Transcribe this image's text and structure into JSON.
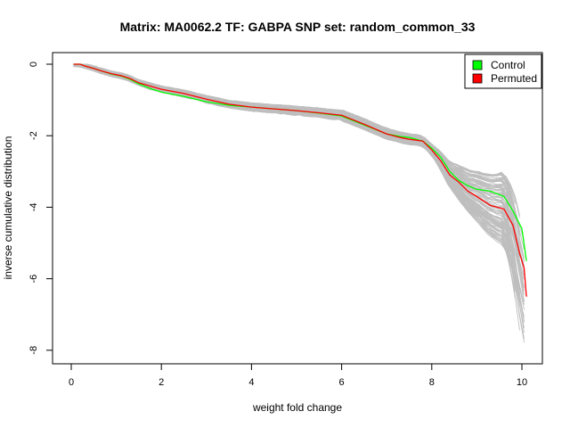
{
  "chart_data": {
    "type": "line",
    "title": "Matrix: MA0062.2 TF: GABPA SNP set: random_common_33",
    "xlabel": "weight fold change",
    "ylabel": "inverse cumulative distribution",
    "xlim": [
      0,
      10.2
    ],
    "ylim": [
      -8,
      0
    ],
    "xticks": [
      0,
      2,
      4,
      6,
      8,
      10
    ],
    "yticks": [
      0,
      -2,
      -4,
      -6,
      -8
    ],
    "grid": false,
    "legend": {
      "position": "top-right",
      "entries": [
        {
          "label": "Control",
          "color": "#00ff00"
        },
        {
          "label": "Permuted",
          "color": "#ff0000"
        }
      ]
    },
    "colors": {
      "background_lines": "#bebebe",
      "control": "#00ff00",
      "permuted": "#ff0000"
    },
    "background_series_count": 100,
    "series": [
      {
        "name": "Control",
        "color": "#00ff00",
        "x": [
          0.05,
          0.2,
          0.3,
          0.5,
          0.7,
          0.9,
          1.1,
          1.3,
          1.5,
          1.8,
          2.0,
          2.5,
          3.0,
          3.5,
          4.0,
          4.5,
          5.0,
          5.5,
          6.0,
          6.5,
          7.0,
          7.3,
          7.5,
          7.8,
          8.0,
          8.2,
          8.4,
          8.6,
          8.8,
          9.0,
          9.3,
          9.6,
          9.8,
          10.0,
          10.1
        ],
        "values": [
          0,
          0,
          -0.05,
          -0.12,
          -0.2,
          -0.28,
          -0.33,
          -0.42,
          -0.55,
          -0.7,
          -0.78,
          -0.9,
          -1.05,
          -1.15,
          -1.2,
          -1.25,
          -1.3,
          -1.37,
          -1.45,
          -1.7,
          -1.95,
          -2.02,
          -2.05,
          -2.15,
          -2.35,
          -2.6,
          -3.0,
          -3.25,
          -3.4,
          -3.5,
          -3.55,
          -3.7,
          -4.1,
          -4.6,
          -5.5
        ]
      },
      {
        "name": "Permuted",
        "color": "#ff0000",
        "x": [
          0.05,
          0.2,
          0.3,
          0.5,
          0.7,
          0.9,
          1.1,
          1.3,
          1.5,
          1.8,
          2.0,
          2.5,
          3.0,
          3.5,
          4.0,
          4.5,
          5.0,
          5.5,
          6.0,
          6.5,
          7.0,
          7.3,
          7.5,
          7.8,
          8.0,
          8.2,
          8.4,
          8.6,
          8.8,
          9.0,
          9.3,
          9.6,
          9.8,
          9.95,
          10.05,
          10.1
        ],
        "values": [
          0,
          0,
          -0.05,
          -0.12,
          -0.2,
          -0.27,
          -0.32,
          -0.4,
          -0.52,
          -0.63,
          -0.7,
          -0.82,
          -0.98,
          -1.12,
          -1.2,
          -1.25,
          -1.3,
          -1.36,
          -1.43,
          -1.68,
          -1.95,
          -2.05,
          -2.1,
          -2.15,
          -2.4,
          -2.7,
          -3.1,
          -3.3,
          -3.55,
          -3.7,
          -3.95,
          -4.05,
          -4.5,
          -5.3,
          -5.7,
          -6.5
        ]
      }
    ]
  }
}
